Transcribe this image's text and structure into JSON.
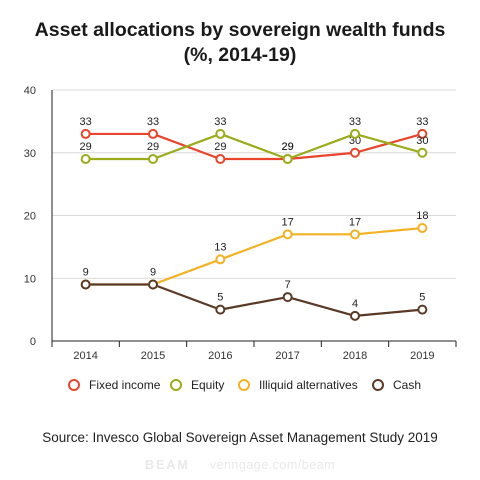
{
  "chart_data": {
    "type": "line",
    "title": "Asset allocations by sovereign wealth funds",
    "subtitle": "(%, 2014-19)",
    "categories": [
      "2014",
      "2015",
      "2016",
      "2017",
      "2018",
      "2019"
    ],
    "y_ticks": [
      "0",
      "10",
      "20",
      "30",
      "40"
    ],
    "ylim": [
      0,
      40
    ],
    "grid": true,
    "legend_position": "bottom",
    "series": [
      {
        "name": "Fixed income",
        "color": "#e8452c",
        "values": [
          33,
          33,
          29,
          29,
          30,
          33
        ],
        "labels": [
          "33",
          "33",
          "29",
          "29",
          "30",
          "33"
        ]
      },
      {
        "name": "Equity",
        "color": "#9aac1c",
        "values": [
          29,
          29,
          33,
          29,
          33,
          30
        ],
        "labels": [
          "29",
          "29",
          "33",
          "29",
          "33",
          "30"
        ]
      },
      {
        "name": "Illiquid alternatives",
        "color": "#f3b223",
        "values": [
          9,
          9,
          13,
          17,
          17,
          18
        ],
        "labels": [
          "",
          "",
          "13",
          "17",
          "17",
          "18"
        ]
      },
      {
        "name": "Cash",
        "color": "#5a3a26",
        "values": [
          9,
          9,
          5,
          7,
          4,
          5
        ],
        "labels": [
          "9",
          "9",
          "5",
          "7",
          "4",
          "5"
        ]
      }
    ]
  },
  "source": "Source: Invesco Global Sovereign Asset Management Study 2019",
  "brand": {
    "logo": "BEAM",
    "site": "venngage.com/beam"
  }
}
